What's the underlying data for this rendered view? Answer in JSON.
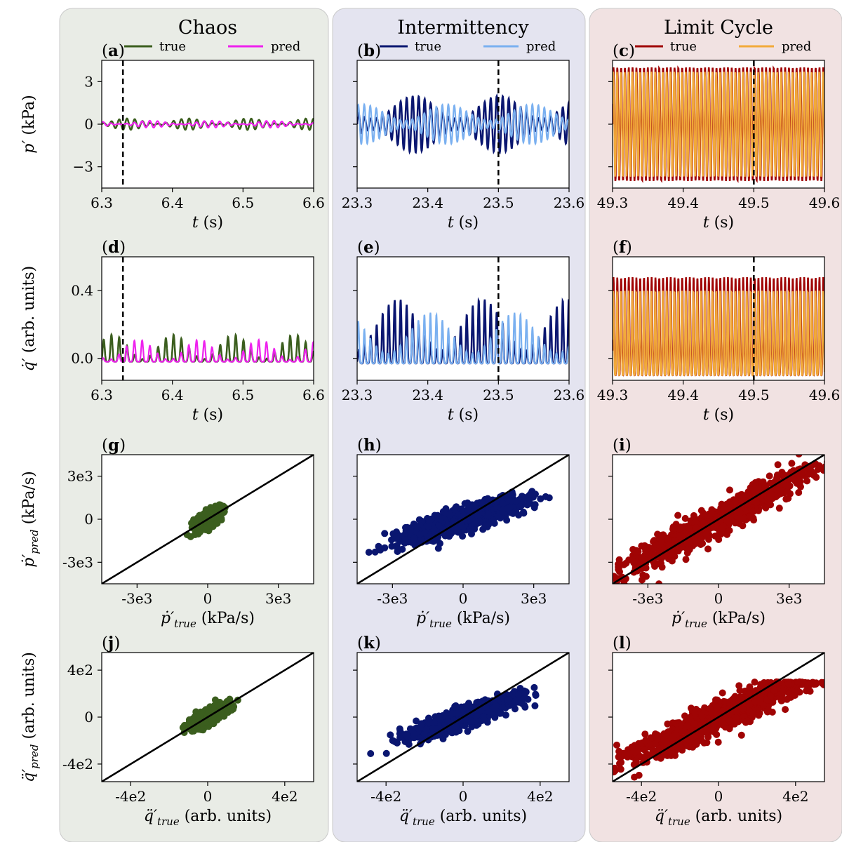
{
  "figure": {
    "columns": [
      {
        "title": "Chaos",
        "bg": "#e9ece6",
        "true_color": "#3b5e1e",
        "pred_color": "#ee22ee"
      },
      {
        "title": "Intermittency",
        "bg": "#e4e4f0",
        "true_color": "#0a1670",
        "pred_color": "#7ab0f0"
      },
      {
        "title": "Limit Cycle",
        "bg": "#f1e2e2",
        "true_color": "#a00404",
        "pred_color": "#f2aa3a"
      }
    ],
    "legend": {
      "true": "true",
      "pred": "pred"
    },
    "panel_letters": [
      "a",
      "b",
      "c",
      "d",
      "e",
      "f",
      "g",
      "h",
      "i",
      "j",
      "k",
      "l"
    ],
    "row_labels": {
      "row1": {
        "main": "p′",
        "unit": " (kPa)"
      },
      "row2": {
        "main": "q̇′",
        "unit": " (arb. units)"
      },
      "row3": {
        "main": "ṗ′",
        "sub": "pred",
        "unit": " (kPa/s)"
      },
      "row4": {
        "main": "q̈′",
        "sub": "pred",
        "unit": " (arb. units)"
      }
    },
    "x_labels": {
      "time": {
        "main": "t",
        "unit": " (s)"
      },
      "row3": {
        "main": "ṗ′",
        "sub": "true",
        "unit": " (kPa/s)"
      },
      "row4": {
        "main": "q̈′",
        "sub": "true",
        "unit": " (arb. units)"
      }
    }
  },
  "chart_data": [
    {
      "panel": "a",
      "type": "line",
      "regime": "Chaos",
      "xlabel": "t (s)",
      "ylabel": "p′ (kPa)",
      "xlim": [
        6.3,
        6.6
      ],
      "ylim": [
        -4.5,
        4.5
      ],
      "xticks": [
        6.3,
        6.4,
        6.5,
        6.6
      ],
      "xtick_labels": [
        "6.3",
        "6.4",
        "6.5",
        "6.6"
      ],
      "yticks": [
        -3,
        0,
        3
      ],
      "ytick_labels": [
        "−3",
        "0",
        "3"
      ],
      "series": [
        {
          "name": "true",
          "amplitude": 0.4
        },
        {
          "name": "pred",
          "amplitude": 0.25
        }
      ],
      "vline": 6.33
    },
    {
      "panel": "b",
      "type": "line",
      "regime": "Intermittency",
      "xlabel": "t (s)",
      "xlim": [
        23.3,
        23.6
      ],
      "ylim": [
        -4.5,
        4.5
      ],
      "xticks": [
        23.3,
        23.4,
        23.5,
        23.6
      ],
      "xtick_labels": [
        "23.3",
        "23.4",
        "23.5",
        "23.6"
      ],
      "yticks": [
        -3,
        0,
        3
      ],
      "ytick_labels": [
        "",
        "",
        ""
      ],
      "series": [
        {
          "name": "true",
          "amplitude": 2.0
        },
        {
          "name": "pred",
          "amplitude": 1.4
        }
      ],
      "vline": 23.5
    },
    {
      "panel": "c",
      "type": "line",
      "regime": "Limit Cycle",
      "xlabel": "t (s)",
      "xlim": [
        49.3,
        49.6
      ],
      "ylim": [
        -4.5,
        4.5
      ],
      "xticks": [
        49.3,
        49.4,
        49.5,
        49.6
      ],
      "xtick_labels": [
        "49.3",
        "49.4",
        "49.5",
        "49.6"
      ],
      "yticks": [
        -3,
        0,
        3
      ],
      "ytick_labels": [
        "",
        "",
        ""
      ],
      "series": [
        {
          "name": "true",
          "amplitude": 4.0
        },
        {
          "name": "pred",
          "amplitude": 3.7
        }
      ],
      "vline": 49.5
    },
    {
      "panel": "d",
      "type": "line",
      "regime": "Chaos",
      "xlabel": "t (s)",
      "ylabel": "q̇′ (arb. units)",
      "xlim": [
        6.3,
        6.6
      ],
      "ylim": [
        -0.13,
        0.6
      ],
      "xticks": [
        6.3,
        6.4,
        6.5,
        6.6
      ],
      "xtick_labels": [
        "6.3",
        "6.4",
        "6.5",
        "6.6"
      ],
      "yticks": [
        0.0,
        0.4
      ],
      "ytick_labels": [
        "0.0",
        "0.4"
      ],
      "series": [
        {
          "name": "true",
          "amplitude": 0.16
        },
        {
          "name": "pred",
          "amplitude": 0.13
        }
      ],
      "vline": 6.33
    },
    {
      "panel": "e",
      "type": "line",
      "regime": "Intermittency",
      "xlabel": "t (s)",
      "xlim": [
        23.3,
        23.6
      ],
      "ylim": [
        -0.13,
        0.6
      ],
      "xticks": [
        23.3,
        23.4,
        23.5,
        23.6
      ],
      "xtick_labels": [
        "23.3",
        "23.4",
        "23.5",
        "23.6"
      ],
      "yticks": [
        0.0,
        0.4
      ],
      "ytick_labels": [
        "",
        ""
      ],
      "series": [
        {
          "name": "true",
          "amplitude": 0.38
        },
        {
          "name": "pred",
          "amplitude": 0.3
        }
      ],
      "vline": 23.5
    },
    {
      "panel": "f",
      "type": "line",
      "regime": "Limit Cycle",
      "xlabel": "t (s)",
      "xlim": [
        49.3,
        49.6
      ],
      "ylim": [
        -0.13,
        0.6
      ],
      "xticks": [
        49.3,
        49.4,
        49.5,
        49.6
      ],
      "xtick_labels": [
        "49.3",
        "49.4",
        "49.5",
        "49.6"
      ],
      "yticks": [
        0.0,
        0.4
      ],
      "ytick_labels": [
        "",
        ""
      ],
      "series": [
        {
          "name": "true",
          "amplitude": 0.58
        },
        {
          "name": "pred",
          "amplitude": 0.5
        }
      ],
      "vline": 49.5
    },
    {
      "panel": "g",
      "type": "scatter",
      "regime": "Chaos",
      "xlabel": "ṗ′true (kPa/s)",
      "ylabel": "ṗ′pred (kPa/s)",
      "xlim": [
        -4500,
        4500
      ],
      "ylim": [
        -4500,
        4500
      ],
      "xticks": [
        -3000,
        0,
        3000
      ],
      "xtick_labels": [
        "-3e3",
        "0",
        "3e3"
      ],
      "yticks": [
        -3000,
        0,
        3000
      ],
      "ytick_labels": [
        "-3e3",
        "0",
        "3e3"
      ],
      "spread_x": 600,
      "slope": 0.9,
      "scatter_y": 250
    },
    {
      "panel": "h",
      "type": "scatter",
      "regime": "Intermittency",
      "xlabel": "ṗ′true (kPa/s)",
      "xlim": [
        -4500,
        4500
      ],
      "ylim": [
        -4500,
        4500
      ],
      "xticks": [
        -3000,
        0,
        3000
      ],
      "xtick_labels": [
        "-3e3",
        "0",
        "3e3"
      ],
      "yticks": [
        -3000,
        0,
        3000
      ],
      "ytick_labels": [
        "",
        "",
        ""
      ],
      "spread_x": 2800,
      "slope": 0.5,
      "scatter_y": 400
    },
    {
      "panel": "i",
      "type": "scatter",
      "regime": "Limit Cycle",
      "xlabel": "ṗ′true (kPa/s)",
      "xlim": [
        -4500,
        4500
      ],
      "ylim": [
        -4500,
        4500
      ],
      "xticks": [
        -3000,
        0,
        3000
      ],
      "xtick_labels": [
        "-3e3",
        "0",
        "3e3"
      ],
      "yticks": [
        -3000,
        0,
        3000
      ],
      "ytick_labels": [
        "",
        "",
        ""
      ],
      "spread_x": 4500,
      "slope": 0.85,
      "scatter_y": 500
    },
    {
      "panel": "j",
      "type": "scatter",
      "regime": "Chaos",
      "xlabel": "q̈′true (arb. units)",
      "ylabel": "q̈′pred (arb. units)",
      "xlim": [
        -550,
        550
      ],
      "ylim": [
        -550,
        550
      ],
      "xticks": [
        -400,
        0,
        400
      ],
      "xtick_labels": [
        "-4e2",
        "0",
        "4e2"
      ],
      "yticks": [
        -400,
        0,
        400
      ],
      "ytick_labels": [
        "-4e2",
        "0",
        "4e2"
      ],
      "spread_x": 100,
      "slope": 0.8,
      "scatter_y": 30
    },
    {
      "panel": "k",
      "type": "scatter",
      "regime": "Intermittency",
      "xlabel": "q̈′true (arb. units)",
      "xlim": [
        -550,
        550
      ],
      "ylim": [
        -550,
        550
      ],
      "xticks": [
        -400,
        0,
        400
      ],
      "xtick_labels": [
        "-4e2",
        "0",
        "4e2"
      ],
      "yticks": [
        -400,
        0,
        400
      ],
      "ytick_labels": [
        "",
        "",
        ""
      ],
      "spread_x": 330,
      "slope": 0.55,
      "scatter_y": 40
    },
    {
      "panel": "l",
      "type": "scatter",
      "regime": "Limit Cycle",
      "xlabel": "q̈′true (arb. units)",
      "xlim": [
        -550,
        550
      ],
      "ylim": [
        -550,
        550
      ],
      "xticks": [
        -400,
        0,
        400
      ],
      "xtick_labels": [
        "-4e2",
        "0",
        "4e2"
      ],
      "yticks": [
        -400,
        0,
        400
      ],
      "ytick_labels": [
        "",
        "",
        ""
      ],
      "spread_x": 550,
      "slope": 0.75,
      "scatter_y": 70,
      "clip_y": 300
    }
  ]
}
